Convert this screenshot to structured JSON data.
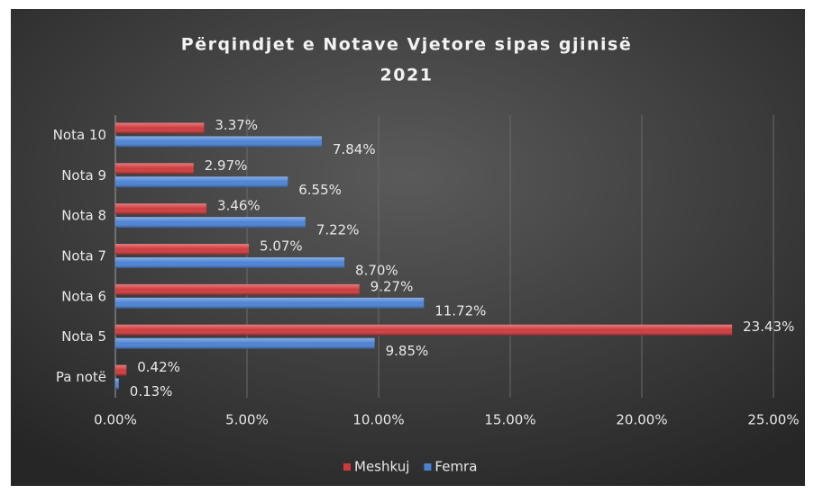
{
  "chart_data": {
    "type": "hbar",
    "title": "Përqindjet e Notave Vjetore sipas gjinisë",
    "subtitle": "2021",
    "categories": [
      "Nota 10",
      "Nota 9",
      "Nota 8",
      "Nota 7",
      "Nota 6",
      "Nota 5",
      "Pa notë"
    ],
    "series": [
      {
        "name": "Meshkuj",
        "color": "#d0393b",
        "values": [
          3.37,
          2.97,
          3.46,
          5.07,
          9.27,
          23.43,
          0.42
        ],
        "value_labels": [
          "3.37%",
          "2.97%",
          "3.46%",
          "5.07%",
          "9.27%",
          "23.43%",
          "0.42%"
        ]
      },
      {
        "name": "Femra",
        "color": "#4a82d4",
        "values": [
          7.84,
          6.55,
          7.22,
          8.7,
          11.72,
          9.85,
          0.13
        ],
        "value_labels": [
          "7.84%",
          "6.55%",
          "7.22%",
          "8.70%",
          "11.72%",
          "9.85%",
          "0.13%"
        ]
      }
    ],
    "xlim": [
      0,
      25
    ],
    "xticks": [
      {
        "value": 0,
        "label": "0.00%"
      },
      {
        "value": 5,
        "label": "5.00%"
      },
      {
        "value": 10,
        "label": "10.00%"
      },
      {
        "value": 15,
        "label": "15.00%"
      },
      {
        "value": 20,
        "label": "20.00%"
      },
      {
        "value": 25,
        "label": "25.00%"
      }
    ],
    "grid": true,
    "legend": "bottom"
  }
}
